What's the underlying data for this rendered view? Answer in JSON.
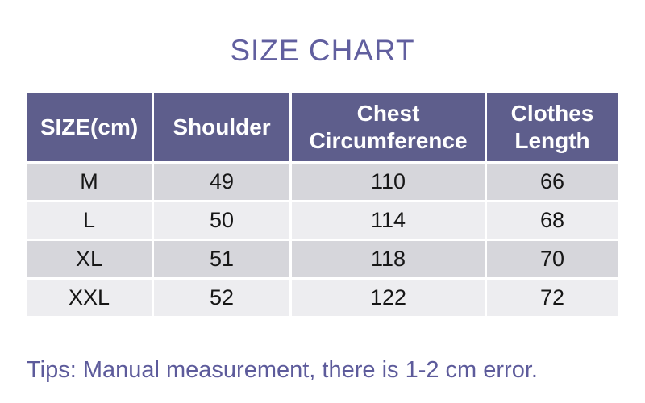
{
  "title": "SIZE CHART",
  "table": {
    "headers": {
      "size": "SIZE(cm)",
      "shoulder": "Shoulder",
      "chest": "Chest Circumference",
      "length": "Clothes Length"
    },
    "rows": [
      {
        "size": "M",
        "shoulder": "49",
        "chest": "110",
        "length": "66"
      },
      {
        "size": "L",
        "shoulder": "50",
        "chest": "114",
        "length": "68"
      },
      {
        "size": "XL",
        "shoulder": "51",
        "chest": "118",
        "length": "70"
      },
      {
        "size": "XXL",
        "shoulder": "52",
        "chest": "122",
        "length": "72"
      }
    ]
  },
  "tips": "Tips: Manual measurement, there is 1-2 cm error.",
  "colors": {
    "accent_purple": "#615f9f",
    "header_bg": "#5e5e8c",
    "row_dark": "#d6d6db",
    "row_light": "#ededf0",
    "tips_color": "#5d5b9b"
  }
}
